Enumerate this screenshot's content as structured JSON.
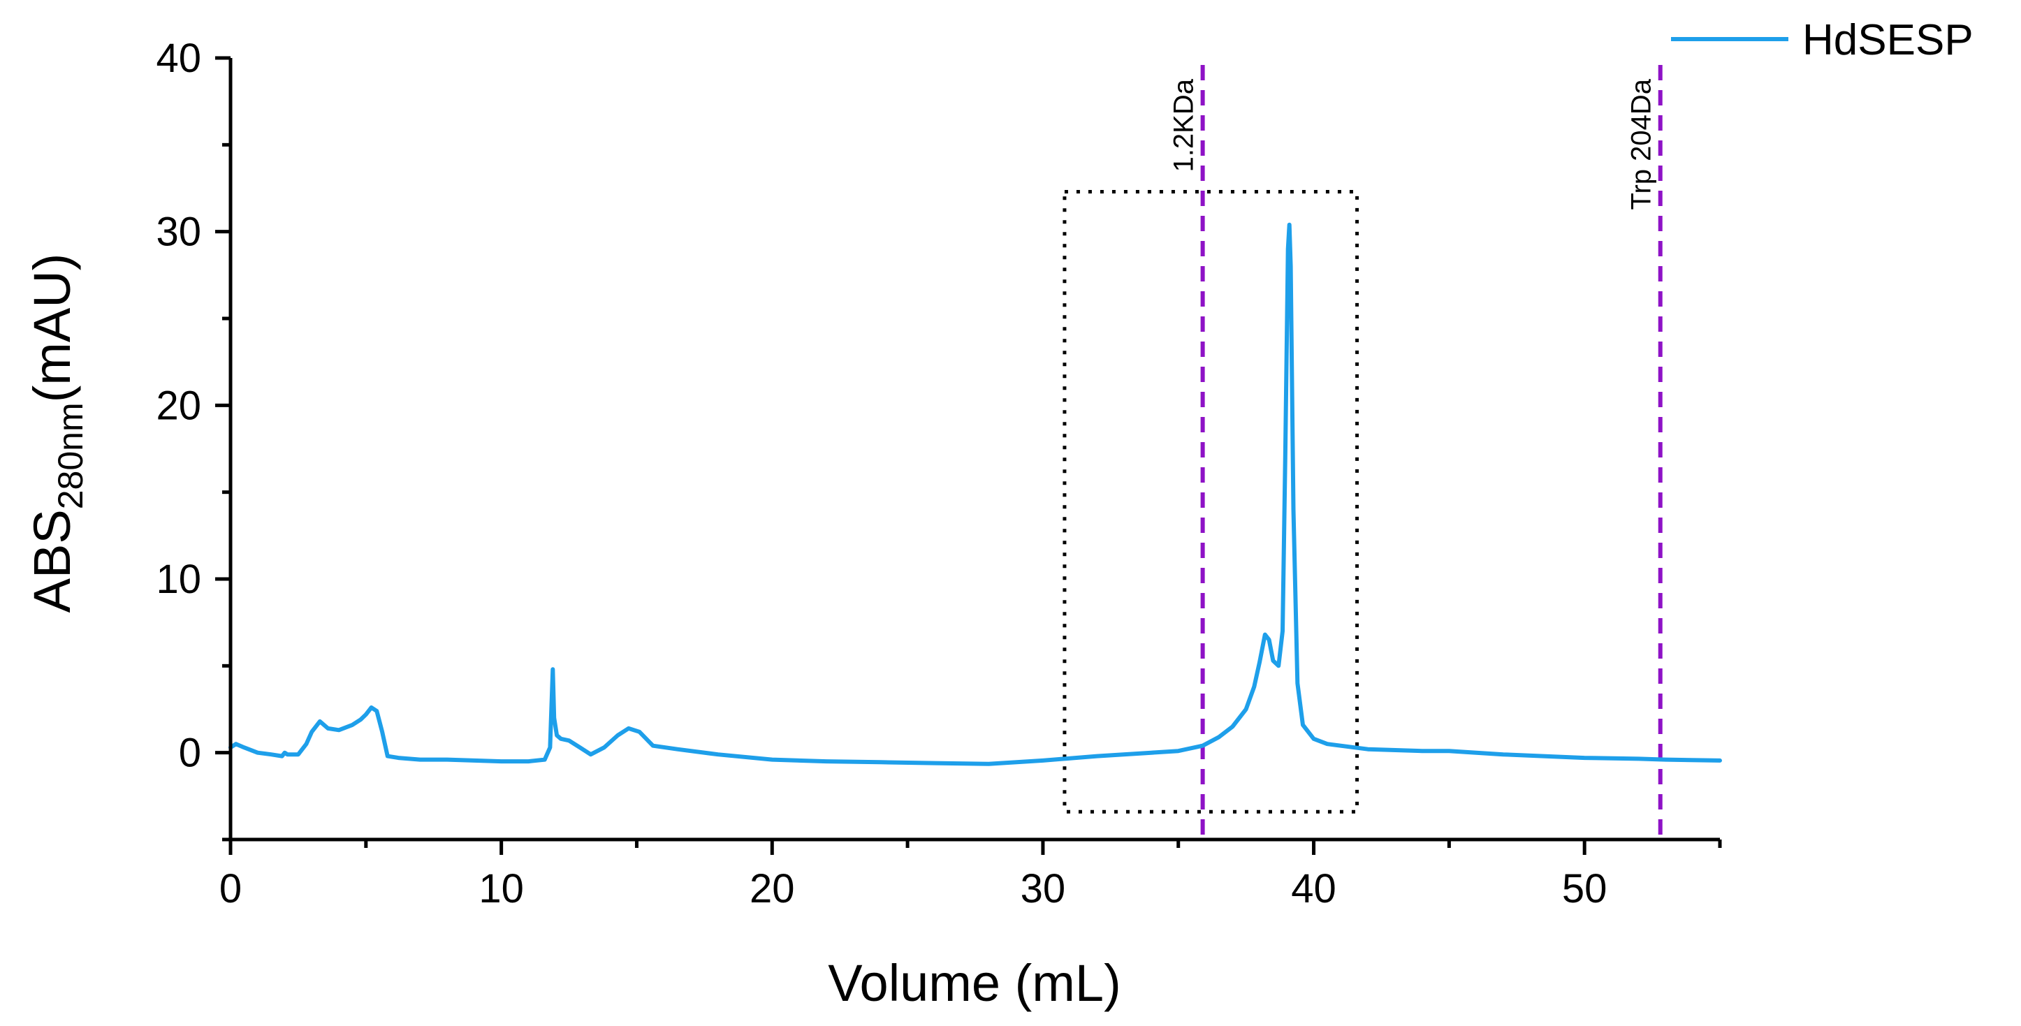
{
  "chart_data": {
    "type": "line",
    "title": "",
    "xlabel": "Volume (mL)",
    "ylabel_main": "ABS",
    "ylabel_sub": "280nm",
    "ylabel_unit": "(mAU)",
    "xlim": [
      0,
      55
    ],
    "ylim": [
      -5,
      40
    ],
    "xticks": [
      0,
      10,
      20,
      30,
      40,
      50
    ],
    "yticks": [
      0,
      10,
      20,
      30,
      40
    ],
    "grid": false,
    "legend_position": "top-right",
    "series": [
      {
        "name": "HdSESP",
        "color": "#1E9FEA",
        "x": [
          0,
          0.2,
          0.5,
          1.0,
          1.5,
          1.9,
          2.0,
          2.1,
          2.5,
          2.8,
          3.0,
          3.3,
          3.6,
          4.0,
          4.5,
          4.8,
          5.0,
          5.2,
          5.4,
          5.6,
          5.8,
          6.2,
          7,
          8,
          9,
          10,
          11,
          11.6,
          11.8,
          11.85,
          11.9,
          11.95,
          12.05,
          12.2,
          12.5,
          12.9,
          13.3,
          13.8,
          14.3,
          14.7,
          15.1,
          15.6,
          16.5,
          18,
          20,
          22,
          24,
          26,
          28,
          30,
          32,
          34,
          35,
          35.9,
          36.5,
          37.0,
          37.5,
          37.8,
          38.0,
          38.2,
          38.35,
          38.5,
          38.7,
          38.85,
          38.95,
          39.05,
          39.1,
          39.15,
          39.25,
          39.4,
          39.6,
          40.0,
          40.5,
          42,
          44,
          45,
          47,
          50,
          52,
          53,
          55
        ],
        "y": [
          0.3,
          0.5,
          0.3,
          0.0,
          -0.1,
          -0.2,
          0.0,
          -0.1,
          -0.1,
          0.5,
          1.2,
          1.8,
          1.4,
          1.3,
          1.6,
          1.9,
          2.2,
          2.6,
          2.4,
          1.2,
          -0.2,
          -0.3,
          -0.4,
          -0.4,
          -0.45,
          -0.5,
          -0.5,
          -0.4,
          0.3,
          2.5,
          4.8,
          2.0,
          1.0,
          0.8,
          0.7,
          0.3,
          -0.1,
          0.3,
          1.0,
          1.4,
          1.2,
          0.4,
          0.2,
          -0.1,
          -0.4,
          -0.5,
          -0.55,
          -0.6,
          -0.65,
          -0.45,
          -0.2,
          0.0,
          0.1,
          0.4,
          0.9,
          1.5,
          2.5,
          3.8,
          5.2,
          6.8,
          6.5,
          5.3,
          5.0,
          7.0,
          17.0,
          29.0,
          30.4,
          28.0,
          14.0,
          4.0,
          1.6,
          0.8,
          0.5,
          0.2,
          0.1,
          0.1,
          -0.1,
          -0.3,
          -0.35,
          -0.4,
          -0.45
        ]
      }
    ],
    "markers": [
      {
        "x": 35.9,
        "label": "1.2KDa",
        "color": "#8E12C6"
      },
      {
        "x": 52.8,
        "label": "Trp 204Da",
        "color": "#8E12C6"
      }
    ],
    "highlight_box": {
      "x_range": [
        30.8,
        41.6
      ],
      "y_range": [
        -3.4,
        32.3
      ]
    }
  }
}
